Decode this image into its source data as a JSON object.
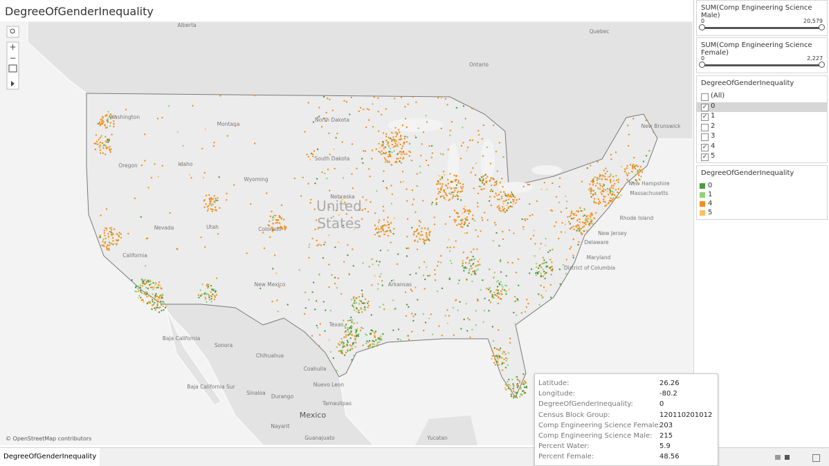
{
  "header": {
    "title": "DegreeOfGenderInequality"
  },
  "filters": [
    {
      "title": "SUM(Comp Engineering Science Male)",
      "min": "0",
      "max": "20,579"
    },
    {
      "title": "SUM(Comp Engineering Science Female)",
      "min": "0",
      "max": "2,227"
    }
  ],
  "checklist": {
    "title": "DegreeOfGenderInequality",
    "items": [
      {
        "label": "(All)",
        "checked": false
      },
      {
        "label": "0",
        "checked": true,
        "selected": true
      },
      {
        "label": "1",
        "checked": true
      },
      {
        "label": "2",
        "checked": false
      },
      {
        "label": "3",
        "checked": false
      },
      {
        "label": "4",
        "checked": true
      },
      {
        "label": "5",
        "checked": true
      }
    ]
  },
  "legend": {
    "title": "DegreeOfGenderInequality",
    "items": [
      {
        "label": "0",
        "color": "#4f9a3d"
      },
      {
        "label": "1",
        "color": "#8fd07a"
      },
      {
        "label": "4",
        "color": "#f28e1c"
      },
      {
        "label": "5",
        "color": "#ffc060"
      }
    ]
  },
  "map": {
    "attribution": "© OpenStreetMap contributors",
    "labels": [
      "Alberta",
      "Quebec",
      "Ontario",
      "North Dakota",
      "Montana",
      "Washington",
      "Oregon",
      "Idaho",
      "South Dakota",
      "Wyoming",
      "Nebraska",
      "Nevada",
      "Utah",
      "Colorado",
      "United",
      "States",
      "California",
      "New Mexico",
      "Arkansas",
      "Texas",
      "Baja California",
      "Sonora",
      "Chihuahua",
      "Coahuila",
      "Baja California Sur",
      "Nuevo Leon",
      "Sinaloa",
      "Durango",
      "Tamaulipas",
      "Mexico",
      "Nayarit",
      "Guanajuato",
      "Yucatan",
      "New Brunswick",
      "New Hampshire",
      "Massachusetts",
      "Rhode Island",
      "New Jersey",
      "Delaware",
      "Maryland",
      "District of Columbia"
    ]
  },
  "tooltip": {
    "rows": [
      {
        "label": "Latitude:",
        "value": "26.26"
      },
      {
        "label": "Longitude:",
        "value": "-80.2"
      },
      {
        "label": "DegreeOfGenderInequality:",
        "value": "0"
      },
      {
        "label": "Census Block Group:",
        "value": "120110201012"
      },
      {
        "label": "Comp Engineering Science Female:",
        "value": "203"
      },
      {
        "label": "Comp Engineering Science Male:",
        "value": "215"
      },
      {
        "label": "Percent Water:",
        "value": "5.9"
      },
      {
        "label": "Percent Female:",
        "value": "48.56"
      }
    ]
  },
  "tabs": [
    "DegreeOfGenderInequality"
  ]
}
